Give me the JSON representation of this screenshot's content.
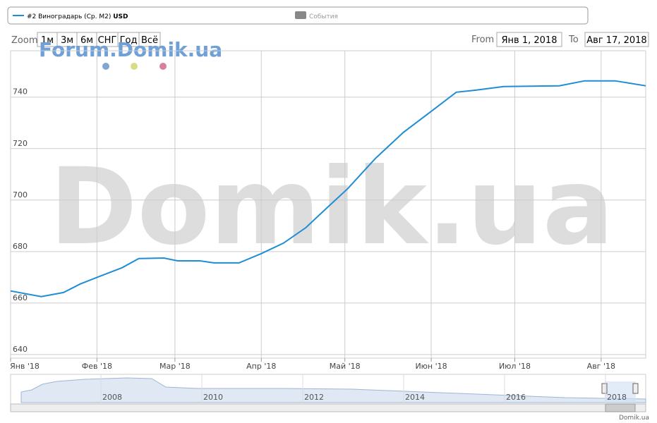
{
  "legend": {
    "series_label": "#2 Виноградарь (Ср. М2)",
    "currency": "USD",
    "events": "События"
  },
  "range_selector": {
    "zoom_label": "Zoom",
    "buttons": [
      "1м",
      "3м",
      "6м",
      "СНГ",
      "Год",
      "Всё"
    ],
    "from_label": "From",
    "from_value": "Янв 1, 2018",
    "to_label": "To",
    "to_value": "Авг 17, 2018"
  },
  "watermarks": {
    "forum": "Forum.Domik.ua",
    "big": "Domik.ua",
    "credit": "Domik.ua"
  },
  "navigator": {
    "years": [
      "2008",
      "2010",
      "2012",
      "2014",
      "2016",
      "2018"
    ]
  },
  "chart_data": {
    "type": "line",
    "x": [
      "2018-01-01",
      "2018-01-12",
      "2018-01-20",
      "2018-01-26",
      "2018-02-02",
      "2018-02-10",
      "2018-02-16",
      "2018-02-25",
      "2018-03-02",
      "2018-03-10",
      "2018-03-15",
      "2018-03-24",
      "2018-04-01",
      "2018-04-09",
      "2018-04-17",
      "2018-04-24",
      "2018-05-02",
      "2018-05-12",
      "2018-05-22",
      "2018-06-02",
      "2018-06-10",
      "2018-06-17",
      "2018-06-27",
      "2018-07-17",
      "2018-07-26",
      "2018-08-06",
      "2018-08-17"
    ],
    "series": [
      {
        "name": "#2 Виноградарь (Ср. М2) USD",
        "color": "#1f8dd6",
        "values": [
          664.7,
          662.5,
          664.1,
          667.4,
          670.4,
          673.7,
          677.3,
          677.5,
          676.4,
          676.4,
          675.6,
          675.6,
          679.2,
          683.3,
          689.3,
          696.4,
          704.4,
          716.2,
          726.3,
          735.3,
          741.9,
          742.7,
          744.1,
          744.4,
          746.3,
          746.3,
          744.4
        ]
      }
    ],
    "xlim": [
      "2018-01-01",
      "2018-08-17"
    ],
    "xticks": [
      {
        "value": "2018-01-01",
        "label": "Янв '18"
      },
      {
        "value": "2018-02-01",
        "label": "Фев '18"
      },
      {
        "value": "2018-03-01",
        "label": "Мар '18"
      },
      {
        "value": "2018-04-01",
        "label": "Апр '18"
      },
      {
        "value": "2018-05-01",
        "label": "Май '18"
      },
      {
        "value": "2018-06-01",
        "label": "Июн '18"
      },
      {
        "value": "2018-07-01",
        "label": "Июл '18"
      },
      {
        "value": "2018-08-01",
        "label": "Авг '18"
      }
    ],
    "ylim": [
      638.6,
      758
    ],
    "yticks": [
      640,
      660,
      680,
      700,
      720,
      740
    ],
    "grid": true
  }
}
